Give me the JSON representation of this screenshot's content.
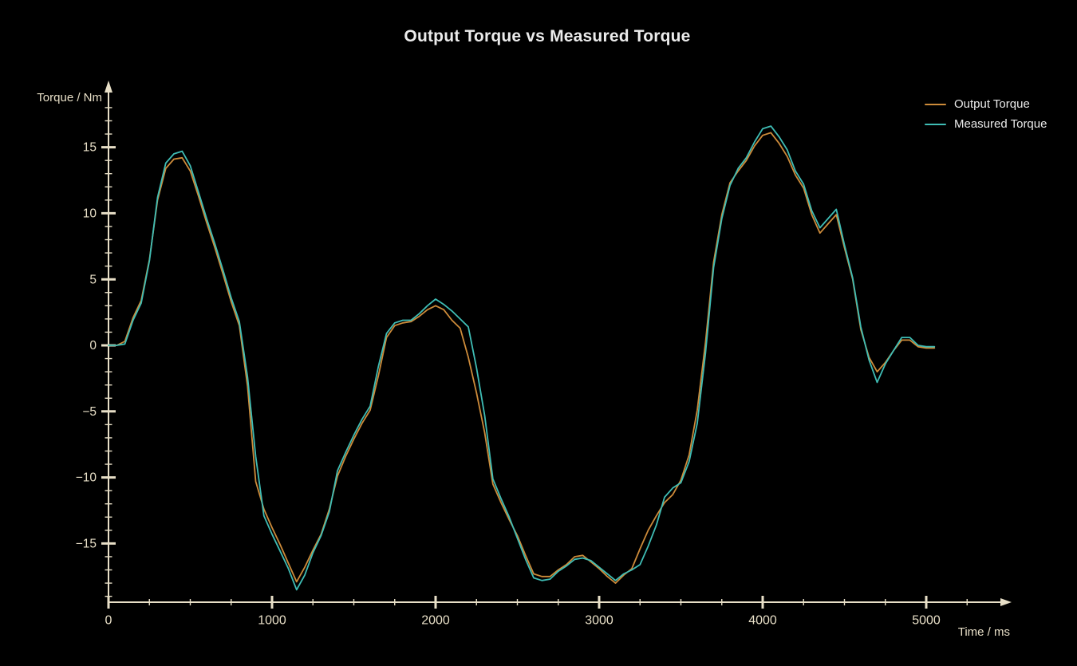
{
  "title": "Output Torque vs Measured Torque",
  "colors": {
    "background": "#000000",
    "title_text": "#ececec",
    "axis": "#e8dfc7",
    "legend_text": "#eaeaea",
    "output": "#cd8b3a",
    "measured": "#3fbdb5"
  },
  "legend": {
    "items": [
      {
        "label": "Output Torque",
        "series_key": "output"
      },
      {
        "label": "Measured Torque",
        "series_key": "measured"
      }
    ]
  },
  "axes": {
    "x_label": "Time / ms",
    "y_label": "Torque / Nm",
    "x_major_ticks": [
      0,
      1000,
      2000,
      3000,
      4000,
      5000
    ],
    "x_minor_step": 250,
    "x_minor_max": 5250,
    "y_major_ticks": [
      -15,
      -10,
      -5,
      0,
      5,
      10,
      15
    ],
    "y_minor_step": 1,
    "y_minor_min": -19,
    "y_minor_max": 18
  },
  "chart_data": {
    "type": "line",
    "title": "Output Torque vs Measured Torque",
    "xlabel": "Time / ms",
    "ylabel": "Torque / Nm",
    "xlim": [
      0,
      5500
    ],
    "ylim": [
      -19.5,
      20
    ],
    "grid": false,
    "legend_position": "top-right",
    "x": [
      0,
      50,
      100,
      150,
      200,
      250,
      300,
      350,
      400,
      450,
      500,
      550,
      600,
      650,
      700,
      750,
      800,
      850,
      900,
      950,
      1000,
      1050,
      1100,
      1150,
      1200,
      1250,
      1300,
      1350,
      1400,
      1450,
      1500,
      1550,
      1600,
      1650,
      1700,
      1750,
      1800,
      1850,
      1900,
      1950,
      2000,
      2050,
      2100,
      2150,
      2200,
      2250,
      2300,
      2350,
      2400,
      2450,
      2500,
      2550,
      2600,
      2650,
      2700,
      2750,
      2800,
      2850,
      2900,
      2950,
      3000,
      3050,
      3100,
      3150,
      3200,
      3250,
      3300,
      3350,
      3400,
      3450,
      3500,
      3550,
      3600,
      3650,
      3700,
      3750,
      3800,
      3850,
      3900,
      3950,
      4000,
      4050,
      4100,
      4150,
      4200,
      4250,
      4300,
      4350,
      4400,
      4450,
      4500,
      4550,
      4600,
      4650,
      4700,
      4750,
      4800,
      4850,
      4900,
      4950,
      5000,
      5050
    ],
    "series": [
      {
        "name": "Output Torque",
        "color": "#cd8b3a",
        "values": [
          0,
          0,
          0.3,
          2.1,
          3.4,
          6.5,
          11.0,
          13.4,
          14.1,
          14.2,
          13.2,
          11.3,
          9.3,
          7.4,
          5.4,
          3.3,
          1.5,
          -3.1,
          -10.3,
          -12.4,
          -13.8,
          -15.1,
          -16.5,
          -17.9,
          -16.8,
          -15.5,
          -14.3,
          -12.4,
          -9.9,
          -8.4,
          -7.1,
          -5.9,
          -4.9,
          -2.3,
          0.6,
          1.5,
          1.7,
          1.8,
          2.2,
          2.7,
          3.0,
          2.7,
          1.9,
          1.3,
          -0.9,
          -3.6,
          -6.6,
          -10.5,
          -11.9,
          -13.2,
          -14.4,
          -15.9,
          -17.3,
          -17.5,
          -17.5,
          -17.0,
          -16.6,
          -16.0,
          -15.9,
          -16.4,
          -16.9,
          -17.5,
          -18.0,
          -17.4,
          -16.9,
          -15.4,
          -14.0,
          -12.9,
          -11.9,
          -11.3,
          -10.2,
          -8.3,
          -4.9,
          0.2,
          6.3,
          9.9,
          12.3,
          13.2,
          14.0,
          15.1,
          15.9,
          16.1,
          15.3,
          14.3,
          12.9,
          11.9,
          9.9,
          8.5,
          9.2,
          9.9,
          7.4,
          5.0,
          1.2,
          -0.9,
          -2.0,
          -1.3,
          -0.4,
          0.4,
          0.4,
          -0.1,
          -0.2,
          -0.2
        ]
      },
      {
        "name": "Measured Torque",
        "color": "#3fbdb5",
        "values": [
          0,
          0,
          0.1,
          1.9,
          3.2,
          6.4,
          11.2,
          13.8,
          14.5,
          14.7,
          13.6,
          11.6,
          9.6,
          7.7,
          5.7,
          3.6,
          1.8,
          -2.4,
          -8.4,
          -12.9,
          -14.3,
          -15.6,
          -16.9,
          -18.5,
          -17.4,
          -15.7,
          -14.4,
          -12.6,
          -9.5,
          -8.1,
          -6.8,
          -5.6,
          -4.6,
          -1.6,
          0.9,
          1.7,
          1.9,
          1.9,
          2.4,
          3.0,
          3.5,
          3.1,
          2.6,
          2.0,
          1.4,
          -1.7,
          -5.3,
          -10.1,
          -11.6,
          -13.0,
          -14.6,
          -16.2,
          -17.6,
          -17.8,
          -17.7,
          -17.1,
          -16.7,
          -16.2,
          -16.1,
          -16.3,
          -16.8,
          -17.3,
          -17.8,
          -17.3,
          -17.0,
          -16.6,
          -15.2,
          -13.6,
          -11.5,
          -10.8,
          -10.4,
          -8.8,
          -5.9,
          -0.6,
          5.9,
          9.6,
          12.1,
          13.4,
          14.2,
          15.4,
          16.4,
          16.6,
          15.8,
          14.8,
          13.2,
          12.2,
          10.2,
          8.9,
          9.6,
          10.3,
          7.6,
          5.1,
          1.4,
          -1.1,
          -2.8,
          -1.4,
          -0.4,
          0.6,
          0.6,
          0.0,
          -0.1,
          -0.1
        ]
      }
    ]
  }
}
